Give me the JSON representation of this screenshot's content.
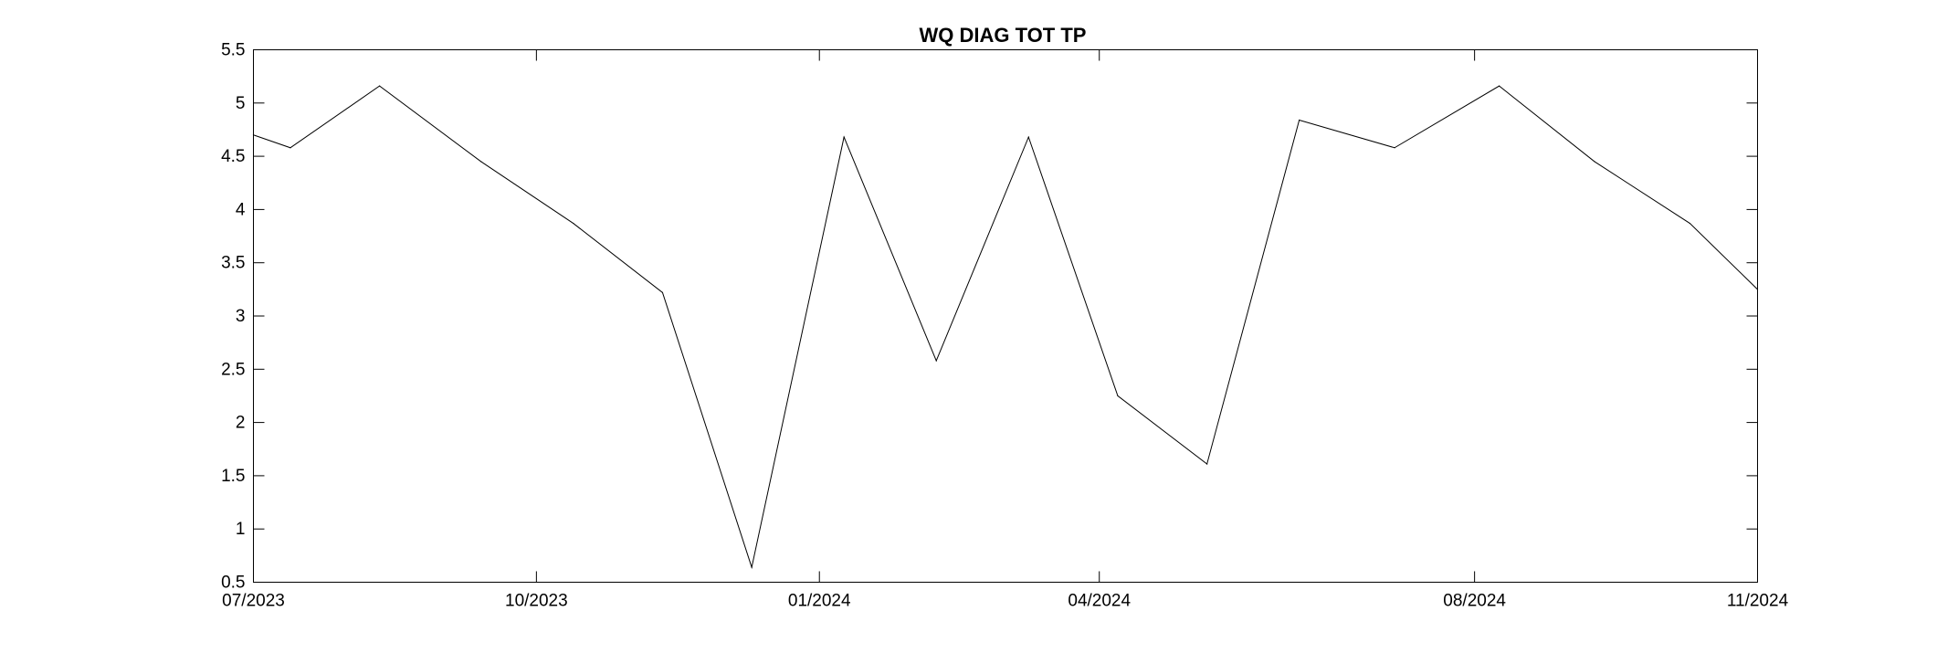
{
  "chart_data": {
    "type": "line",
    "title": "WQ DIAG TOT TP",
    "xlabel": "",
    "ylabel": "",
    "ylim": [
      0.5,
      5.5
    ],
    "xlim": [
      "2023-07-01",
      "2024-11-01"
    ],
    "grid": false,
    "y_ticks": [
      0.5,
      1,
      1.5,
      2,
      2.5,
      3,
      3.5,
      4,
      4.5,
      5,
      5.5
    ],
    "y_tick_labels": [
      "0.5",
      "1",
      "1.5",
      "2",
      "2.5",
      "3",
      "3.5",
      "4",
      "4.5",
      "5",
      "5.5"
    ],
    "x_ticks": [
      "2023-07-01",
      "2023-10-01",
      "2024-01-01",
      "2024-04-01",
      "2024-08-01",
      "2024-11-01"
    ],
    "x_tick_labels": [
      "07/2023",
      "10/2023",
      "01/2024",
      "04/2024",
      "08/2024",
      "11/2024"
    ],
    "series": [
      {
        "color": "#000000",
        "x": [
          "2023-07-01",
          "2023-07-13",
          "2023-08-11",
          "2023-09-13",
          "2023-10-13",
          "2023-11-11",
          "2023-12-10",
          "2024-01-09",
          "2024-02-08",
          "2024-03-09",
          "2024-04-07",
          "2024-05-06",
          "2024-06-05",
          "2024-07-06",
          "2024-08-09",
          "2024-09-09",
          "2024-10-10",
          "2024-11-01"
        ],
        "values": [
          4.7,
          4.58,
          5.16,
          4.45,
          3.87,
          3.22,
          0.64,
          4.68,
          2.58,
          4.68,
          2.25,
          1.61,
          4.84,
          4.58,
          5.16,
          4.45,
          3.87,
          3.25
        ]
      }
    ]
  }
}
